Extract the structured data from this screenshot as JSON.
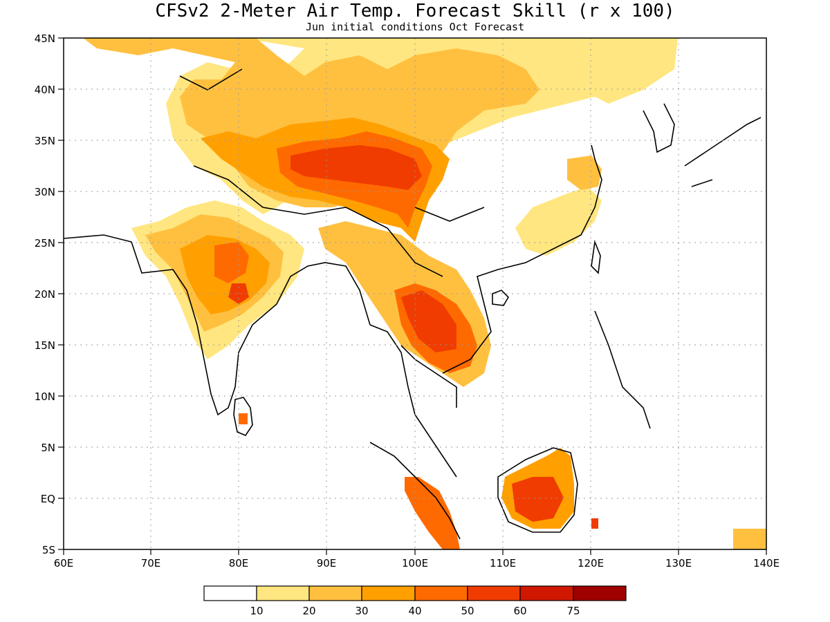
{
  "title": "CFSv2 2-Meter Air Temp. Forecast Skill (r x 100)",
  "subtitle": "Jun initial conditions  Oct Forecast",
  "axes": {
    "x_ticks": [
      "60E",
      "70E",
      "80E",
      "90E",
      "100E",
      "110E",
      "120E",
      "130E",
      "140E"
    ],
    "y_ticks": [
      "45N",
      "40N",
      "35N",
      "30N",
      "25N",
      "20N",
      "15N",
      "10N",
      "5N",
      "EQ",
      "5S"
    ]
  },
  "colorbar": {
    "labels": [
      "10",
      "20",
      "30",
      "40",
      "50",
      "60",
      "75"
    ],
    "colors": [
      "#ffffff",
      "#ffe680",
      "#ffc040",
      "#ffa000",
      "#ff6a00",
      "#f03c00",
      "#d01800",
      "#a00000"
    ]
  }
}
